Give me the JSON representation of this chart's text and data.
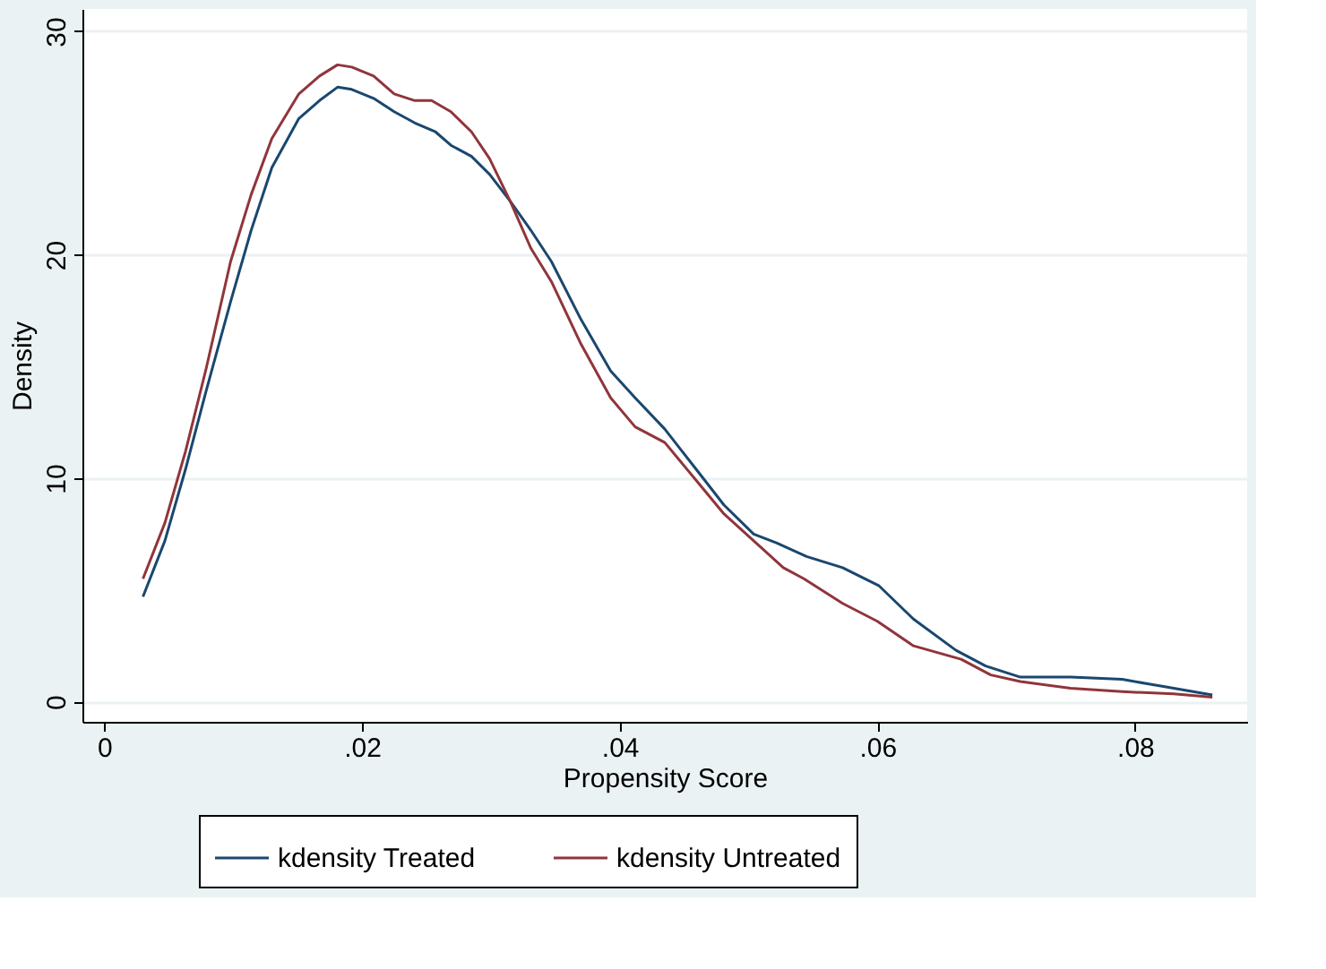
{
  "chart_data": {
    "type": "line",
    "xlabel": "Propensity Score",
    "ylabel": "Density",
    "xlim": [
      -0.0017,
      0.0887
    ],
    "ylim": [
      -0.9,
      31
    ],
    "xticks": [
      {
        "value": 0,
        "label": "0"
      },
      {
        "value": 0.02,
        "label": ".02"
      },
      {
        "value": 0.04,
        "label": ".04"
      },
      {
        "value": 0.06,
        "label": ".06"
      },
      {
        "value": 0.08,
        "label": ".08"
      }
    ],
    "yticks": [
      0,
      10,
      20,
      30
    ],
    "grid": "y",
    "legend": "bottom",
    "line_style": "solid",
    "marker": "none",
    "series": [
      {
        "name": "kdensity Treated",
        "color": "#1a476f",
        "x": [
          0.003,
          0.0047,
          0.0063,
          0.0079,
          0.0098,
          0.0114,
          0.013,
          0.0151,
          0.0167,
          0.0181,
          0.0192,
          0.0209,
          0.0225,
          0.0241,
          0.0257,
          0.0269,
          0.0285,
          0.0299,
          0.0315,
          0.0331,
          0.0347,
          0.037,
          0.0393,
          0.0412,
          0.0435,
          0.0458,
          0.0481,
          0.0504,
          0.0522,
          0.0545,
          0.0573,
          0.0601,
          0.0628,
          0.0661,
          0.0684,
          0.0711,
          0.075,
          0.079,
          0.082,
          0.086
        ],
        "values": [
          4.7,
          7.2,
          10.4,
          13.9,
          17.9,
          21.1,
          23.9,
          26.1,
          26.9,
          27.5,
          27.4,
          27.0,
          26.4,
          25.9,
          25.5,
          24.9,
          24.4,
          23.6,
          22.4,
          21.1,
          19.7,
          17.1,
          14.8,
          13.6,
          12.2,
          10.5,
          8.8,
          7.5,
          7.1,
          6.5,
          6.0,
          5.2,
          3.7,
          2.3,
          1.6,
          1.1,
          1.1,
          1.0,
          0.7,
          0.3
        ]
      },
      {
        "name": "kdensity Untreated",
        "color": "#90353b",
        "x": [
          0.003,
          0.0047,
          0.0063,
          0.0079,
          0.0098,
          0.0114,
          0.013,
          0.0151,
          0.0167,
          0.0181,
          0.0192,
          0.0209,
          0.0225,
          0.0241,
          0.0254,
          0.0269,
          0.0285,
          0.0299,
          0.0315,
          0.0331,
          0.0347,
          0.037,
          0.0393,
          0.0412,
          0.0435,
          0.0458,
          0.0481,
          0.0504,
          0.0527,
          0.0543,
          0.0573,
          0.06,
          0.0628,
          0.0665,
          0.0688,
          0.0711,
          0.075,
          0.079,
          0.083,
          0.086
        ],
        "values": [
          5.5,
          8.0,
          11.2,
          14.9,
          19.7,
          22.7,
          25.2,
          27.2,
          28.0,
          28.5,
          28.4,
          28.0,
          27.2,
          26.9,
          26.9,
          26.4,
          25.5,
          24.3,
          22.4,
          20.3,
          18.8,
          16.0,
          13.6,
          12.3,
          11.6,
          10.0,
          8.4,
          7.2,
          6.0,
          5.5,
          4.4,
          3.6,
          2.5,
          1.9,
          1.2,
          0.9,
          0.6,
          0.45,
          0.35,
          0.2
        ]
      }
    ]
  }
}
